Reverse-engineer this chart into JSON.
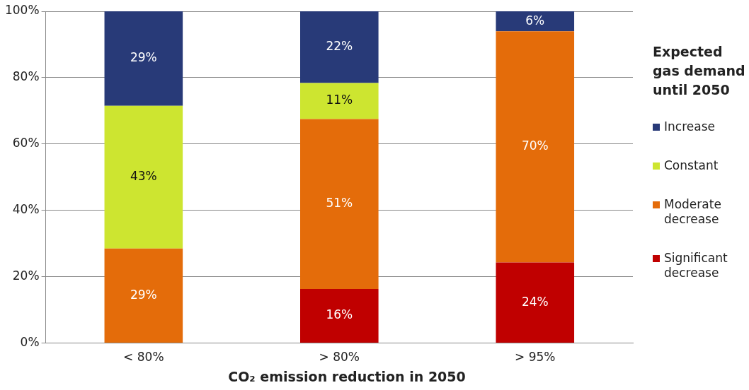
{
  "chart_data": {
    "type": "bar",
    "stacked": true,
    "xlabel": "CO₂ emission reduction in 2050",
    "legend_title": "Expected gas demand until 2050",
    "categories": [
      "< 80%",
      "> 80%",
      "> 95%"
    ],
    "series": [
      {
        "name": "Significant decrease",
        "color": "#c00000",
        "values": [
          null,
          16.3,
          24.3
        ],
        "value_labels": [
          null,
          "16%",
          "24%"
        ]
      },
      {
        "name": "Moderate decrease",
        "color": "#e46c0a",
        "values": [
          28.5,
          51.2,
          69.7
        ],
        "value_labels": [
          "29%",
          "51%",
          "70%"
        ]
      },
      {
        "name": "Constant",
        "color": "#cde530",
        "values": [
          43,
          10.9,
          null
        ],
        "value_labels": [
          "43%",
          "11%",
          null
        ]
      },
      {
        "name": "Increase",
        "color": "#283a78",
        "values": [
          28.5,
          21.6,
          6
        ],
        "value_labels": [
          "29%",
          "22%",
          "6%"
        ]
      }
    ],
    "ylim": [
      0,
      100
    ],
    "yticks": [
      {
        "value": 0,
        "label": "0%"
      },
      {
        "value": 20,
        "label": "20%"
      },
      {
        "value": 40,
        "label": "40%"
      },
      {
        "value": 60,
        "label": "60%"
      },
      {
        "value": 80,
        "label": "80%"
      },
      {
        "value": 100,
        "label": "100%"
      }
    ],
    "grid": "y",
    "legend": "right"
  }
}
